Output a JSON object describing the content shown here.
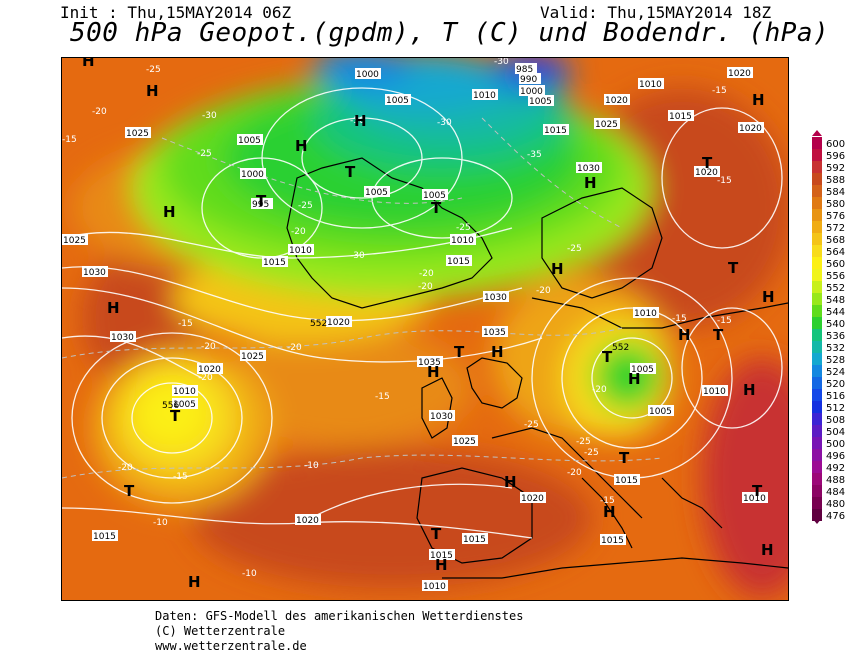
{
  "header": {
    "init": "Init : Thu,15MAY2014 06Z",
    "valid": "Valid: Thu,15MAY2014 18Z",
    "title": "500 hPa Geopot.(gpdm), T (C) und Bodendr. (hPa)"
  },
  "legend": {
    "values": [
      "600",
      "596",
      "592",
      "588",
      "584",
      "580",
      "576",
      "572",
      "568",
      "564",
      "560",
      "556",
      "552",
      "548",
      "544",
      "540",
      "536",
      "532",
      "528",
      "524",
      "520",
      "516",
      "512",
      "508",
      "504",
      "500",
      "496",
      "492",
      "488",
      "484",
      "480",
      "476"
    ],
    "colors": [
      "#b4004a",
      "#c01040",
      "#c83232",
      "#c84a1e",
      "#d4621a",
      "#e07a14",
      "#e89414",
      "#f0ac14",
      "#f4c418",
      "#f8dc1c",
      "#fcf014",
      "#f0f41c",
      "#c8f01c",
      "#98e81c",
      "#60dc1c",
      "#2cd030",
      "#14c47c",
      "#14b8a8",
      "#14a8d0",
      "#1488e0",
      "#1468e4",
      "#1448e8",
      "#1430e0",
      "#3c24d4",
      "#5c1cc4",
      "#7814b4",
      "#8c10a4",
      "#9c0c94",
      "#9c0878",
      "#8c0464",
      "#780050",
      "#600040"
    ]
  },
  "map": {
    "pressure_labels": [
      "1000",
      "1005",
      "1010",
      "1015",
      "1020",
      "1025",
      "1030",
      "1035",
      "995",
      "985",
      "990"
    ],
    "centers": [
      "H",
      "T"
    ],
    "temperature_labels": [
      "-10",
      "-15",
      "-20",
      "-25",
      "-30",
      "-35",
      "-40"
    ],
    "geopot_labels": [
      "552",
      "552",
      "556"
    ]
  },
  "footer": {
    "line1": "Daten: GFS-Modell des amerikanischen Wetterdienstes",
    "line2": "(C) Wetterzentrale",
    "line3": "www.wetterzentrale.de"
  }
}
